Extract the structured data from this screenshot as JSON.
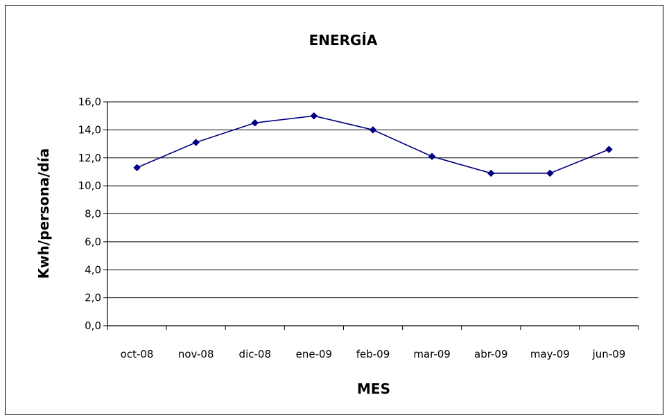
{
  "chart_data": {
    "type": "line",
    "title": "ENERGÍA",
    "xlabel": "MES",
    "ylabel": "Kwh/persona/día",
    "categories": [
      "oct-08",
      "nov-08",
      "dic-08",
      "ene-09",
      "feb-09",
      "mar-09",
      "abr-09",
      "may-09",
      "jun-09"
    ],
    "series": [
      {
        "values": [
          11.3,
          13.1,
          14.5,
          15.0,
          14.0,
          12.1,
          10.9,
          10.9,
          12.6
        ]
      }
    ],
    "ylim": [
      0,
      16
    ],
    "yticks": [
      "0,0",
      "2,0",
      "4,0",
      "6,0",
      "8,0",
      "10,0",
      "12,0",
      "14,0",
      "16,0"
    ],
    "ytick_values": [
      0,
      2,
      4,
      6,
      8,
      10,
      12,
      14,
      16
    ],
    "grid": true,
    "line_color": "#000080"
  }
}
